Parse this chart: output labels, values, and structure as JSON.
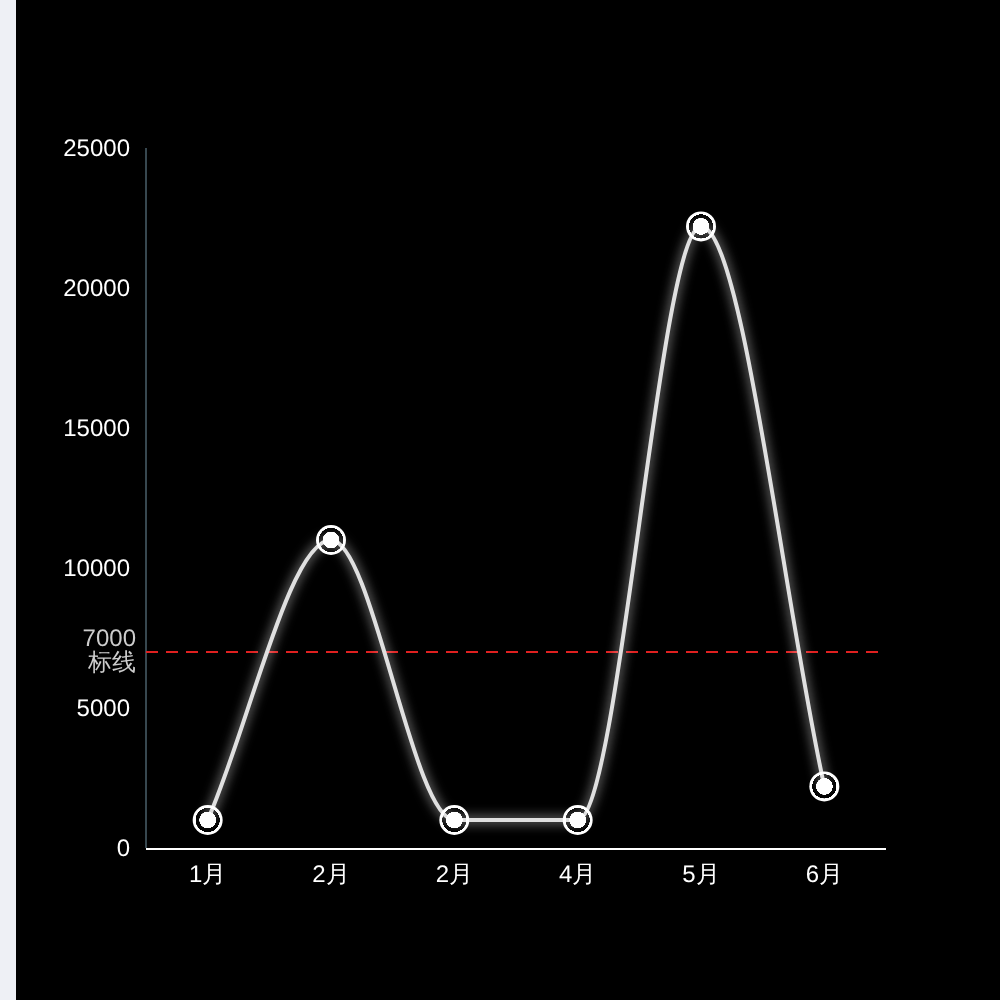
{
  "chart_data": {
    "type": "line",
    "categories": [
      "1月",
      "2月",
      "2月",
      "4月",
      "5月",
      "6月"
    ],
    "series": [
      {
        "color": "#e0e0e0",
        "values": [
          1000,
          11000,
          1000,
          1000,
          22200,
          2200
        ]
      }
    ],
    "ylim": [
      0,
      25000
    ],
    "yticks": [
      0,
      5000,
      10000,
      15000,
      20000,
      25000
    ],
    "grid": false,
    "marker": "circle",
    "line_style": "solid",
    "ref_lines": [
      {
        "axis": "y",
        "value": 7000,
        "label": "7000\n标线",
        "color": "#e02020",
        "line_style": "dashed"
      }
    ]
  }
}
